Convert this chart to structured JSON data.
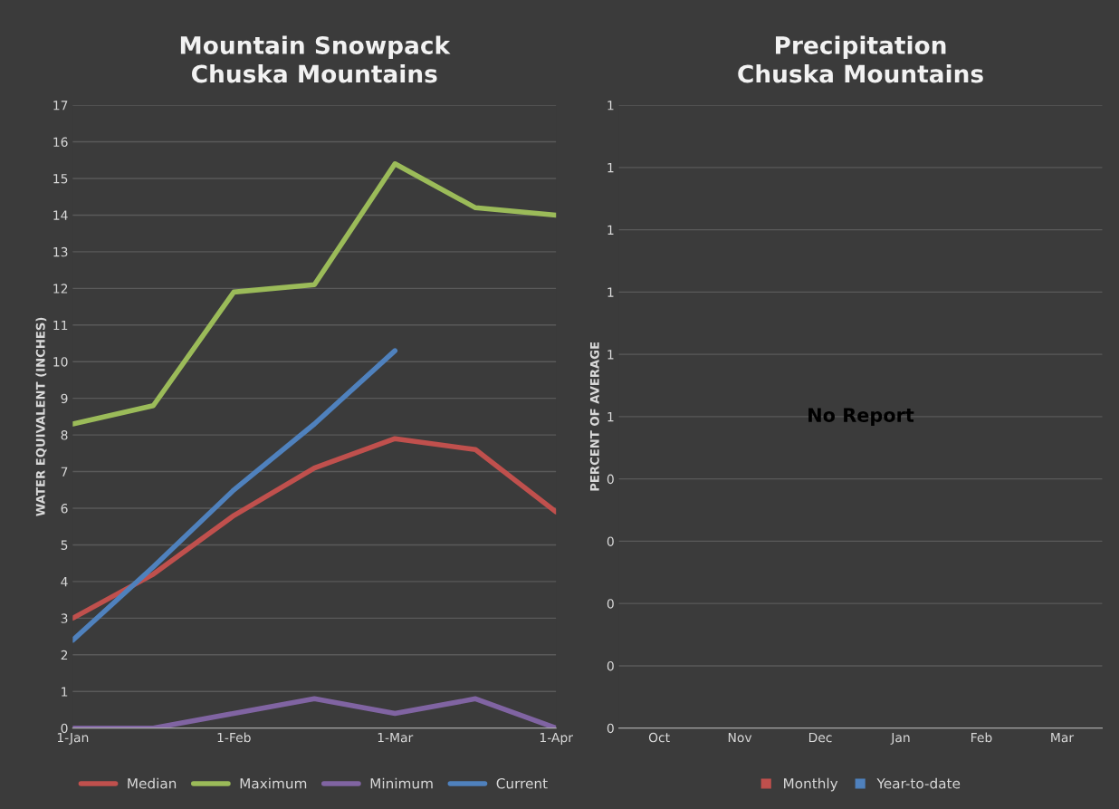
{
  "chart_data": [
    {
      "type": "line",
      "title": "Mountain Snowpack\nChuska Mountains",
      "ylabel": "WATER EQUIVALENT (INCHES)",
      "categories": [
        "1-Jan",
        null,
        "1-Feb",
        null,
        "1-Mar",
        null,
        "1-Apr"
      ],
      "series": [
        {
          "name": "Median",
          "color": "#c0504d",
          "values": [
            3.0,
            4.2,
            5.8,
            7.1,
            7.9,
            7.6,
            5.9
          ]
        },
        {
          "name": "Maximum",
          "color": "#9bbb59",
          "values": [
            8.3,
            8.8,
            11.9,
            12.1,
            15.4,
            14.2,
            14.0
          ]
        },
        {
          "name": "Minimum",
          "color": "#8064a2",
          "values": [
            0,
            0,
            0.4,
            0.8,
            0.4,
            0.8,
            0
          ]
        },
        {
          "name": "Current",
          "color": "#4f81bd",
          "values": [
            2.4,
            4.4,
            6.5,
            8.3,
            10.3,
            null,
            null
          ]
        }
      ],
      "ylim": [
        0,
        17
      ],
      "yticks": [
        0,
        1,
        2,
        3,
        4,
        5,
        6,
        7,
        8,
        9,
        10,
        11,
        12,
        13,
        14,
        15,
        16,
        17
      ],
      "grid": "y",
      "legend": "bottom",
      "marker": "none",
      "line_style": "solid"
    },
    {
      "type": "bar",
      "title": "Precipitation\nChuska Mountains",
      "ylabel": "PERCENT OF AVERAGE",
      "categories": [
        "Oct",
        "Nov",
        "Dec",
        "Jan",
        "Feb",
        "Mar"
      ],
      "series": [
        {
          "name": "Monthly",
          "color": "#c0504d",
          "values": [
            null,
            null,
            null,
            null,
            null,
            null
          ]
        },
        {
          "name": "Year-to-date",
          "color": "#4f81bd",
          "values": [
            null,
            null,
            null,
            null,
            null,
            null
          ]
        }
      ],
      "ylim": [
        0,
        1
      ],
      "yticks": [
        {
          "value": 0,
          "label": "0"
        },
        {
          "value": 0.1,
          "label": "0"
        },
        {
          "value": 0.2,
          "label": "0"
        },
        {
          "value": 0.3,
          "label": "0"
        },
        {
          "value": 0.4,
          "label": "0"
        },
        {
          "value": 0.5,
          "label": "1"
        },
        {
          "value": 0.6,
          "label": "1"
        },
        {
          "value": 0.7,
          "label": "1"
        },
        {
          "value": 0.8,
          "label": "1"
        },
        {
          "value": 0.9,
          "label": "1"
        },
        {
          "value": 1.0,
          "label": "1"
        }
      ],
      "annotations": [
        "No Report"
      ],
      "grid": "y",
      "legend": "bottom"
    }
  ]
}
